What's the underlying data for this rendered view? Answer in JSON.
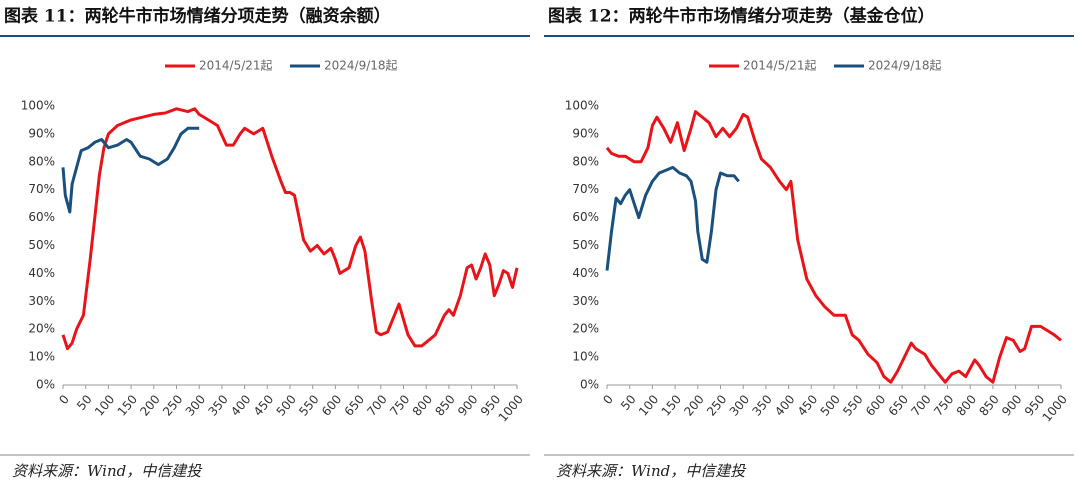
{
  "chart_data": [
    {
      "type": "line",
      "title": "图表 11：两轮牛市市场情绪分项走势（融资余额）",
      "source": "资料来源：Wind，中信建投",
      "xlim": [
        0,
        1000
      ],
      "xticks": [
        0,
        50,
        100,
        150,
        200,
        250,
        300,
        350,
        400,
        450,
        500,
        550,
        600,
        650,
        700,
        750,
        800,
        850,
        900,
        950,
        1000
      ],
      "ylim": [
        0,
        100
      ],
      "yticks": [
        {
          "value": 0,
          "label": "0%"
        },
        {
          "value": 10,
          "label": "10%"
        },
        {
          "value": 20,
          "label": "20%"
        },
        {
          "value": 30,
          "label": "30%"
        },
        {
          "value": 40,
          "label": "40%"
        },
        {
          "value": 50,
          "label": "50%"
        },
        {
          "value": 60,
          "label": "60%"
        },
        {
          "value": 70,
          "label": "70%"
        },
        {
          "value": 80,
          "label": "80%"
        },
        {
          "value": 90,
          "label": "90%"
        },
        {
          "value": 100,
          "label": "100%"
        }
      ],
      "series": [
        {
          "name": "2014/5/21起",
          "color": "#e8141a",
          "x": [
            0,
            10,
            20,
            30,
            45,
            60,
            70,
            80,
            90,
            100,
            120,
            150,
            175,
            200,
            225,
            250,
            275,
            290,
            300,
            320,
            340,
            360,
            375,
            390,
            400,
            420,
            440,
            460,
            480,
            490,
            500,
            510,
            520,
            530,
            545,
            560,
            575,
            590,
            600,
            610,
            630,
            645,
            655,
            665,
            680,
            690,
            700,
            715,
            730,
            740,
            760,
            775,
            790,
            805,
            820,
            840,
            850,
            860,
            875,
            890,
            900,
            910,
            920,
            930,
            940,
            950,
            960,
            970,
            980,
            990,
            1000
          ],
          "values": [
            18,
            13,
            15,
            20,
            25,
            45,
            60,
            75,
            85,
            90,
            93,
            95,
            96,
            97,
            97.5,
            99,
            98,
            99,
            97,
            95,
            93,
            86,
            86,
            90,
            92,
            90,
            92,
            82,
            73,
            69,
            69,
            68,
            60,
            52,
            48,
            50,
            47,
            49,
            45,
            40,
            42,
            50,
            53,
            48,
            30,
            19,
            18,
            19,
            25,
            29,
            18,
            14,
            14,
            16,
            18,
            25,
            27,
            25,
            32,
            42,
            43,
            38,
            42,
            47,
            43,
            32,
            36,
            41,
            40,
            35,
            42
          ]
        },
        {
          "name": "2024/9/18起",
          "color": "#1b4f7d",
          "x": [
            0,
            5,
            15,
            20,
            30,
            40,
            55,
            70,
            85,
            100,
            120,
            140,
            150,
            170,
            190,
            210,
            230,
            245,
            260,
            275,
            290,
            300
          ],
          "values": [
            78,
            68,
            62,
            72,
            78,
            84,
            85,
            87,
            88,
            85,
            86,
            88,
            87,
            82,
            81,
            79,
            81,
            85,
            90,
            92,
            92,
            92
          ]
        }
      ]
    },
    {
      "type": "line",
      "title": "图表 12：两轮牛市市场情绪分项走势（基金仓位）",
      "source": "资料来源：Wind，中信建投",
      "xlim": [
        0,
        1000
      ],
      "xticks": [
        0,
        50,
        100,
        150,
        200,
        250,
        300,
        350,
        400,
        450,
        500,
        550,
        600,
        650,
        700,
        750,
        800,
        850,
        900,
        950,
        1000
      ],
      "ylim": [
        0,
        100
      ],
      "yticks": [
        {
          "value": 0,
          "label": "0%"
        },
        {
          "value": 10,
          "label": "10%"
        },
        {
          "value": 20,
          "label": "20%"
        },
        {
          "value": 30,
          "label": "30%"
        },
        {
          "value": 40,
          "label": "40%"
        },
        {
          "value": 50,
          "label": "50%"
        },
        {
          "value": 60,
          "label": "60%"
        },
        {
          "value": 70,
          "label": "70%"
        },
        {
          "value": 80,
          "label": "80%"
        },
        {
          "value": 90,
          "label": "90%"
        },
        {
          "value": 100,
          "label": "100%"
        }
      ],
      "series": [
        {
          "name": "2014/5/21起",
          "color": "#e8141a",
          "x": [
            0,
            10,
            25,
            40,
            50,
            60,
            75,
            90,
            100,
            110,
            125,
            140,
            155,
            170,
            185,
            195,
            210,
            225,
            240,
            255,
            270,
            285,
            300,
            310,
            325,
            340,
            360,
            380,
            395,
            405,
            420,
            440,
            460,
            480,
            500,
            525,
            540,
            555,
            575,
            595,
            610,
            625,
            640,
            655,
            670,
            680,
            700,
            715,
            730,
            745,
            760,
            775,
            790,
            810,
            820,
            835,
            850,
            865,
            880,
            895,
            910,
            920,
            935,
            955,
            975,
            985,
            1000
          ],
          "values": [
            85,
            83,
            82,
            82,
            81,
            80,
            80,
            85,
            93,
            96,
            92,
            87,
            94,
            84,
            92,
            98,
            96,
            94,
            89,
            92,
            89,
            92,
            97,
            96,
            88,
            81,
            78,
            73,
            70,
            73,
            52,
            38,
            32,
            28,
            25,
            25,
            18,
            16,
            11,
            8,
            3,
            1,
            5,
            10,
            15,
            13,
            11,
            7,
            4,
            1,
            4,
            5,
            3,
            9,
            7,
            3,
            1,
            10,
            17,
            16,
            12,
            13,
            21,
            21,
            19,
            18,
            16
          ]
        },
        {
          "name": "2024/9/18起",
          "color": "#1b4f7d",
          "x": [
            0,
            10,
            20,
            30,
            40,
            50,
            60,
            70,
            85,
            100,
            115,
            130,
            145,
            160,
            175,
            185,
            195,
            200,
            210,
            220,
            230,
            240,
            250,
            265,
            280,
            290
          ],
          "values": [
            41,
            55,
            67,
            65,
            68,
            70,
            65,
            60,
            68,
            73,
            76,
            77,
            78,
            76,
            75,
            73,
            66,
            55,
            45,
            44,
            55,
            70,
            76,
            75,
            75,
            73
          ]
        }
      ]
    }
  ]
}
